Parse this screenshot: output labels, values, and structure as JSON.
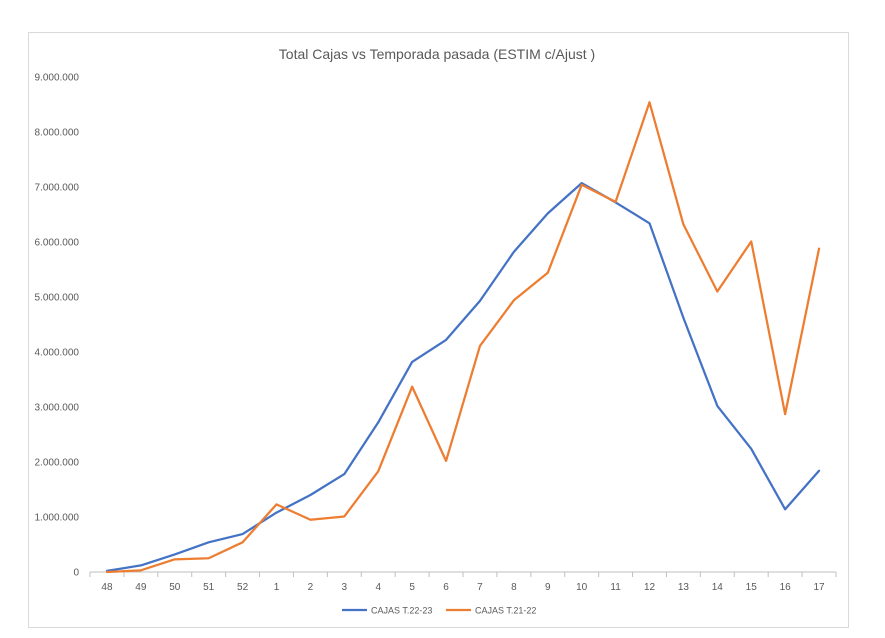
{
  "chart_data": {
    "type": "line",
    "title": "Total Cajas vs Temporada pasada (ESTIM c/Ajust )",
    "xlabel": "",
    "ylabel": "",
    "categories": [
      "48",
      "49",
      "50",
      "51",
      "52",
      "1",
      "2",
      "3",
      "4",
      "5",
      "6",
      "7",
      "8",
      "9",
      "10",
      "11",
      "12",
      "13",
      "14",
      "15",
      "16",
      "17"
    ],
    "ylim": [
      0,
      9000000
    ],
    "yticks": [
      0,
      1000000,
      2000000,
      3000000,
      4000000,
      5000000,
      6000000,
      7000000,
      8000000,
      9000000
    ],
    "ytick_labels": [
      "0",
      "1.000.000",
      "2.000.000",
      "3.000.000",
      "4.000.000",
      "5.000.000",
      "6.000.000",
      "7.000.000",
      "8.000.000",
      "9.000.000"
    ],
    "grid": false,
    "legend_position": "bottom",
    "series": [
      {
        "name": "CAJAS T.22-23",
        "color": "#4472C4",
        "values": [
          20000,
          120000,
          320000,
          540000,
          690000,
          1080000,
          1400000,
          1780000,
          2720000,
          3820000,
          4220000,
          4930000,
          5820000,
          6520000,
          7070000,
          6720000,
          6340000,
          4620000,
          3020000,
          2240000,
          1140000,
          1840000
        ]
      },
      {
        "name": "CAJAS T.21-22",
        "color": "#ED7D31",
        "values": [
          0,
          30000,
          230000,
          250000,
          540000,
          1230000,
          950000,
          1010000,
          1830000,
          3370000,
          2020000,
          4110000,
          4940000,
          5440000,
          7040000,
          6730000,
          8540000,
          6320000,
          5100000,
          6010000,
          2870000,
          5880000
        ]
      }
    ]
  }
}
